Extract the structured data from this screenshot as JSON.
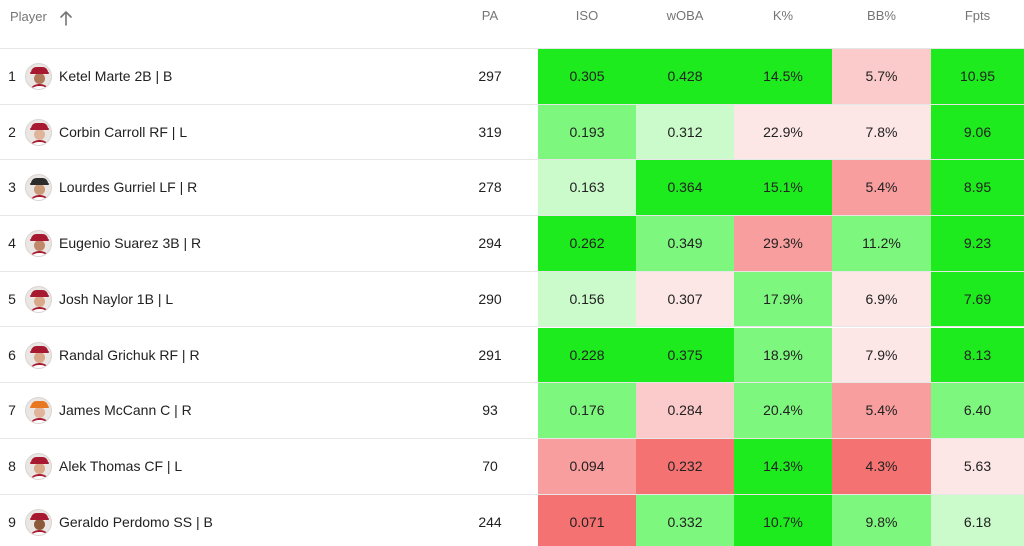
{
  "header": {
    "player": "Player",
    "pa": "PA",
    "iso": "ISO",
    "woba": "wOBA",
    "k": "K%",
    "bb": "BB%",
    "fpts": "Fpts",
    "sort_icon": "arrow-up-icon"
  },
  "colors": {
    "strong_green": "#1eeb1e",
    "mid_green": "#7ef77e",
    "light_green": "#cbfbcb",
    "very_light_red": "#fde6e6",
    "light_red": "#fbcaca",
    "mid_red": "#f89e9e",
    "strong_red": "#f57272"
  },
  "rows": [
    {
      "rank": "1",
      "name": "Ketel Marte 2B | B",
      "pa": "297",
      "iso": {
        "v": "0.305",
        "c": "#1eeb1e"
      },
      "woba": {
        "v": "0.428",
        "c": "#1eeb1e"
      },
      "k": {
        "v": "14.5%",
        "c": "#1eeb1e"
      },
      "bb": {
        "v": "5.7%",
        "c": "#fbcaca"
      },
      "fpts": {
        "v": "10.95",
        "c": "#1eeb1e"
      },
      "avatar": {
        "cap": "#a71930",
        "skin": "#b07a5a"
      }
    },
    {
      "rank": "2",
      "name": "Corbin Carroll RF | L",
      "pa": "319",
      "iso": {
        "v": "0.193",
        "c": "#7ef77e"
      },
      "woba": {
        "v": "0.312",
        "c": "#cbfbcb"
      },
      "k": {
        "v": "22.9%",
        "c": "#fde6e6"
      },
      "bb": {
        "v": "7.8%",
        "c": "#fde6e6"
      },
      "fpts": {
        "v": "9.06",
        "c": "#1eeb1e"
      },
      "avatar": {
        "cap": "#a71930",
        "skin": "#e0b49a"
      }
    },
    {
      "rank": "3",
      "name": "Lourdes Gurriel LF | R",
      "pa": "278",
      "iso": {
        "v": "0.163",
        "c": "#cbfbcb"
      },
      "woba": {
        "v": "0.364",
        "c": "#1eeb1e"
      },
      "k": {
        "v": "15.1%",
        "c": "#1eeb1e"
      },
      "bb": {
        "v": "5.4%",
        "c": "#f89e9e"
      },
      "fpts": {
        "v": "8.95",
        "c": "#1eeb1e"
      },
      "avatar": {
        "cap": "#2b2b2b",
        "skin": "#c89a7a"
      }
    },
    {
      "rank": "4",
      "name": "Eugenio Suarez 3B | R",
      "pa": "294",
      "iso": {
        "v": "0.262",
        "c": "#1eeb1e"
      },
      "woba": {
        "v": "0.349",
        "c": "#7ef77e"
      },
      "k": {
        "v": "29.3%",
        "c": "#f89e9e"
      },
      "bb": {
        "v": "11.2%",
        "c": "#7ef77e"
      },
      "fpts": {
        "v": "9.23",
        "c": "#1eeb1e"
      },
      "avatar": {
        "cap": "#a71930",
        "skin": "#c08a6a"
      }
    },
    {
      "rank": "5",
      "name": "Josh Naylor 1B | L",
      "pa": "290",
      "iso": {
        "v": "0.156",
        "c": "#cbfbcb"
      },
      "woba": {
        "v": "0.307",
        "c": "#fde6e6"
      },
      "k": {
        "v": "17.9%",
        "c": "#7ef77e"
      },
      "bb": {
        "v": "6.9%",
        "c": "#fde6e6"
      },
      "fpts": {
        "v": "7.69",
        "c": "#1eeb1e"
      },
      "avatar": {
        "cap": "#a71930",
        "skin": "#d8a888"
      }
    },
    {
      "rank": "6",
      "name": "Randal Grichuk RF | R",
      "pa": "291",
      "iso": {
        "v": "0.228",
        "c": "#1eeb1e"
      },
      "woba": {
        "v": "0.375",
        "c": "#1eeb1e"
      },
      "k": {
        "v": "18.9%",
        "c": "#7ef77e"
      },
      "bb": {
        "v": "7.9%",
        "c": "#fde6e6"
      },
      "fpts": {
        "v": "8.13",
        "c": "#1eeb1e"
      },
      "avatar": {
        "cap": "#a71930",
        "skin": "#d8a888"
      }
    },
    {
      "rank": "7",
      "name": "James McCann C | R",
      "pa": "93",
      "iso": {
        "v": "0.176",
        "c": "#7ef77e"
      },
      "woba": {
        "v": "0.284",
        "c": "#fbcaca"
      },
      "k": {
        "v": "20.4%",
        "c": "#7ef77e"
      },
      "bb": {
        "v": "5.4%",
        "c": "#f89e9e"
      },
      "fpts": {
        "v": "6.40",
        "c": "#7ef77e"
      },
      "avatar": {
        "cap": "#e87722",
        "skin": "#e0b49a"
      }
    },
    {
      "rank": "8",
      "name": "Alek Thomas CF | L",
      "pa": "70",
      "iso": {
        "v": "0.094",
        "c": "#f89e9e"
      },
      "woba": {
        "v": "0.232",
        "c": "#f57272"
      },
      "k": {
        "v": "14.3%",
        "c": "#1eeb1e"
      },
      "bb": {
        "v": "4.3%",
        "c": "#f57272"
      },
      "fpts": {
        "v": "5.63",
        "c": "#fde6e6"
      },
      "avatar": {
        "cap": "#a71930",
        "skin": "#d8a888"
      }
    },
    {
      "rank": "9",
      "name": "Geraldo Perdomo SS | B",
      "pa": "244",
      "iso": {
        "v": "0.071",
        "c": "#f57272"
      },
      "woba": {
        "v": "0.332",
        "c": "#7ef77e"
      },
      "k": {
        "v": "10.7%",
        "c": "#1eeb1e"
      },
      "bb": {
        "v": "9.8%",
        "c": "#7ef77e"
      },
      "fpts": {
        "v": "6.18",
        "c": "#cbfbcb"
      },
      "avatar": {
        "cap": "#a71930",
        "skin": "#8a5a3a"
      }
    }
  ]
}
